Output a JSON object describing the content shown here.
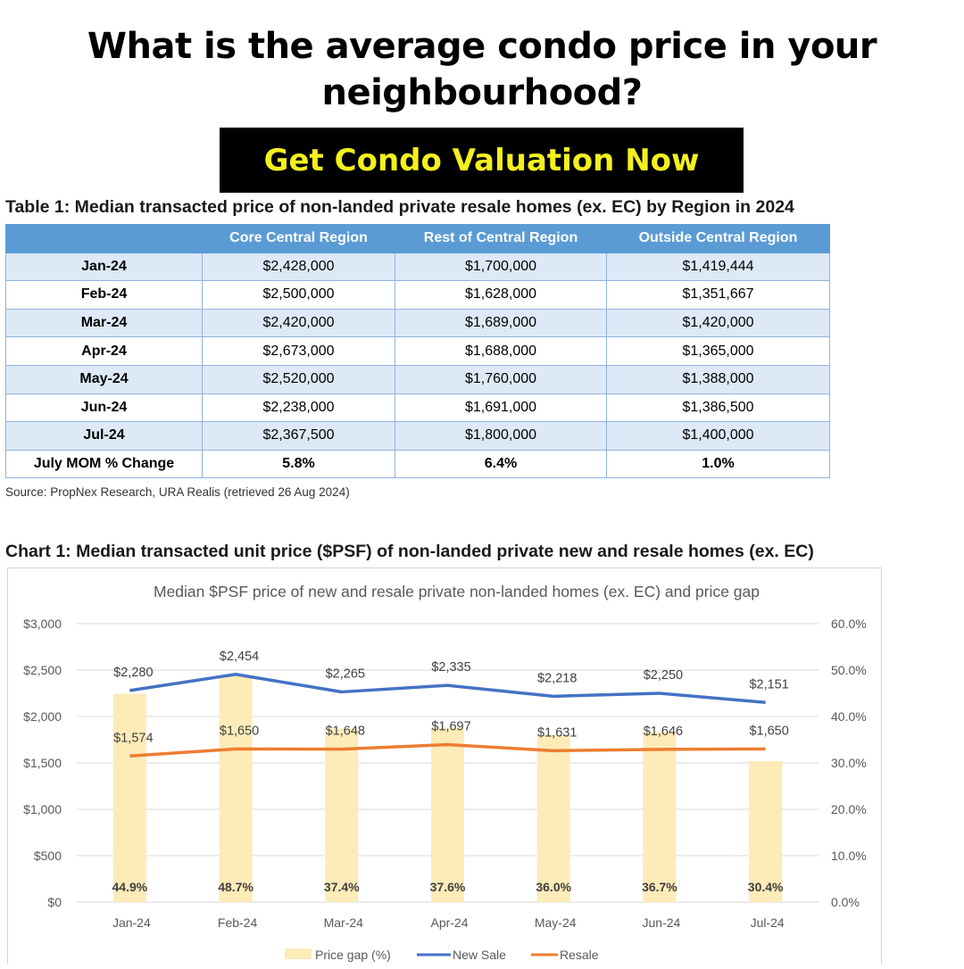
{
  "headline": "What is the average condo price in your neighbourhood?",
  "cta_label": "Get Condo Valuation Now",
  "table": {
    "title": "Table 1: Median transacted price of non-landed private resale homes (ex. EC) by Region in 2024",
    "headers": [
      "",
      "Core Central Region",
      "Rest of Central Region",
      "Outside Central Region"
    ],
    "rows": [
      [
        "Jan-24",
        "$2,428,000",
        "$1,700,000",
        "$1,419,444"
      ],
      [
        "Feb-24",
        "$2,500,000",
        "$1,628,000",
        "$1,351,667"
      ],
      [
        "Mar-24",
        "$2,420,000",
        "$1,689,000",
        "$1,420,000"
      ],
      [
        "Apr-24",
        "$2,673,000",
        "$1,688,000",
        "$1,365,000"
      ],
      [
        "May-24",
        "$2,520,000",
        "$1,760,000",
        "$1,388,000"
      ],
      [
        "Jun-24",
        "$2,238,000",
        "$1,691,000",
        "$1,386,500"
      ],
      [
        "Jul-24",
        "$2,367,500",
        "$1,800,000",
        "$1,400,000"
      ]
    ],
    "total_row": [
      "July MOM % Change",
      "5.8%",
      "6.4%",
      "1.0%"
    ],
    "source": "Source: PropNex Research, URA Realis (retrieved 26 Aug 2024)"
  },
  "chart_title": "Chart 1: Median transacted unit price ($PSF) of non-landed private new and resale homes (ex. EC)",
  "colors": {
    "cta_bg": "#000000",
    "cta_text": "#f4f01d",
    "table_header": "#5b9bd5",
    "table_band": "#dde9f7",
    "new_sale": "#4472c4",
    "resale": "#ed7d31",
    "price_gap": "#fdebb8"
  },
  "chart_data": {
    "type": "bar",
    "title": "Median $PSF price of new and resale private non-landed homes (ex. EC) and price gap",
    "categories": [
      "Jan-24",
      "Feb-24",
      "Mar-24",
      "Apr-24",
      "May-24",
      "Jun-24",
      "Jul-24"
    ],
    "ylim": [
      0,
      3000
    ],
    "y_ticks": [
      "$0",
      "$500",
      "$1,000",
      "$1,500",
      "$2,000",
      "$2,500",
      "$3,000"
    ],
    "y2lim": [
      0,
      60
    ],
    "y2_ticks": [
      "0.0%",
      "10.0%",
      "20.0%",
      "30.0%",
      "40.0%",
      "50.0%",
      "60.0%"
    ],
    "grid": true,
    "legend": "bottom",
    "series": [
      {
        "name": "Price gap (%)",
        "type": "bar",
        "axis": "right",
        "values": [
          44.9,
          48.7,
          37.4,
          37.6,
          36.0,
          36.7,
          30.4
        ],
        "labels": [
          "44.9%",
          "48.7%",
          "37.4%",
          "37.6%",
          "36.0%",
          "36.7%",
          "30.4%"
        ]
      },
      {
        "name": "New Sale",
        "type": "line",
        "axis": "left",
        "values": [
          2280,
          2454,
          2265,
          2335,
          2218,
          2250,
          2151
        ],
        "labels": [
          "$2,280",
          "$2,454",
          "$2,265",
          "$2,335",
          "$2,218",
          "$2,250",
          "$2,151"
        ]
      },
      {
        "name": "Resale",
        "type": "line",
        "axis": "left",
        "values": [
          1574,
          1650,
          1648,
          1697,
          1631,
          1646,
          1650
        ],
        "labels": [
          "$1,574",
          "$1,650",
          "$1,648",
          "$1,697",
          "$1,631",
          "$1,646",
          "$1,650"
        ]
      }
    ]
  }
}
